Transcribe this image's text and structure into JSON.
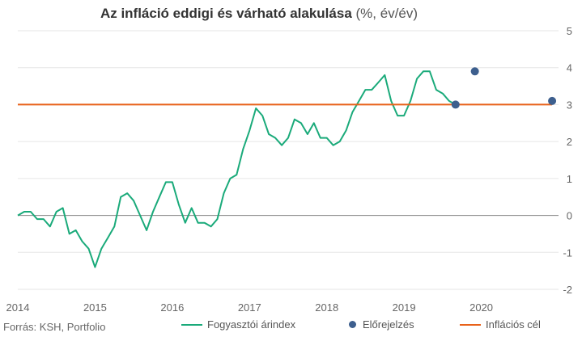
{
  "title": "Az infláció eddigi és várható alakulása",
  "title_unit": "(%, év/év)",
  "source": "Forrás: KSH, Portfolio",
  "colors": {
    "cpi": "#1aaa7a",
    "forecast": "#3d5f8e",
    "target": "#e8621a",
    "zero": "#888888",
    "grid": "#e6e6e6"
  },
  "chart_data": {
    "type": "line",
    "x_ticks": [
      "2014",
      "2015",
      "2016",
      "2017",
      "2018",
      "2019",
      "2020"
    ],
    "y_ticks": [
      "-2",
      "-1",
      "0",
      "1",
      "2",
      "3",
      "4",
      "5"
    ],
    "ylim": [
      -2,
      5
    ],
    "xlim": [
      2014.0,
      2021.0
    ],
    "grid": true,
    "legend_position": "bottom",
    "series": [
      {
        "name": "Fogyasztói árindex",
        "type": "line",
        "x": [
          2014.0,
          2014.083,
          2014.167,
          2014.25,
          2014.333,
          2014.417,
          2014.5,
          2014.583,
          2014.667,
          2014.75,
          2014.833,
          2014.917,
          2015.0,
          2015.083,
          2015.167,
          2015.25,
          2015.333,
          2015.417,
          2015.5,
          2015.583,
          2015.667,
          2015.75,
          2015.833,
          2015.917,
          2016.0,
          2016.083,
          2016.167,
          2016.25,
          2016.333,
          2016.417,
          2016.5,
          2016.583,
          2016.667,
          2016.75,
          2016.833,
          2016.917,
          2017.0,
          2017.083,
          2017.167,
          2017.25,
          2017.333,
          2017.417,
          2017.5,
          2017.583,
          2017.667,
          2017.75,
          2017.833,
          2017.917,
          2018.0,
          2018.083,
          2018.167,
          2018.25,
          2018.333,
          2018.417,
          2018.5,
          2018.583,
          2018.667,
          2018.75,
          2018.833,
          2018.917,
          2019.0,
          2019.083,
          2019.167,
          2019.25,
          2019.333,
          2019.417,
          2019.5,
          2019.583,
          2019.667
        ],
        "y": [
          0.0,
          0.1,
          0.1,
          -0.1,
          -0.1,
          -0.3,
          0.1,
          0.2,
          -0.5,
          -0.4,
          -0.7,
          -0.9,
          -1.4,
          -0.9,
          -0.6,
          -0.3,
          0.5,
          0.6,
          0.4,
          0.0,
          -0.4,
          0.1,
          0.5,
          0.9,
          0.9,
          0.3,
          -0.2,
          0.2,
          -0.2,
          -0.2,
          -0.3,
          -0.1,
          0.6,
          1.0,
          1.1,
          1.8,
          2.3,
          2.9,
          2.7,
          2.2,
          2.1,
          1.9,
          2.1,
          2.6,
          2.5,
          2.2,
          2.5,
          2.1,
          2.1,
          1.9,
          2.0,
          2.3,
          2.8,
          3.1,
          3.4,
          3.4,
          3.6,
          3.8,
          3.1,
          2.7,
          2.7,
          3.1,
          3.7,
          3.9,
          3.9,
          3.4,
          3.3,
          3.1,
          3.0
        ]
      },
      {
        "name": "Előrejelzés",
        "type": "scatter",
        "x": [
          2019.667,
          2019.917,
          2020.917
        ],
        "y": [
          3.0,
          3.9,
          3.1
        ]
      },
      {
        "name": "Inflációs cél",
        "type": "line",
        "x": [
          2014.0,
          2020.917
        ],
        "y": [
          3.0,
          3.0
        ]
      }
    ]
  }
}
